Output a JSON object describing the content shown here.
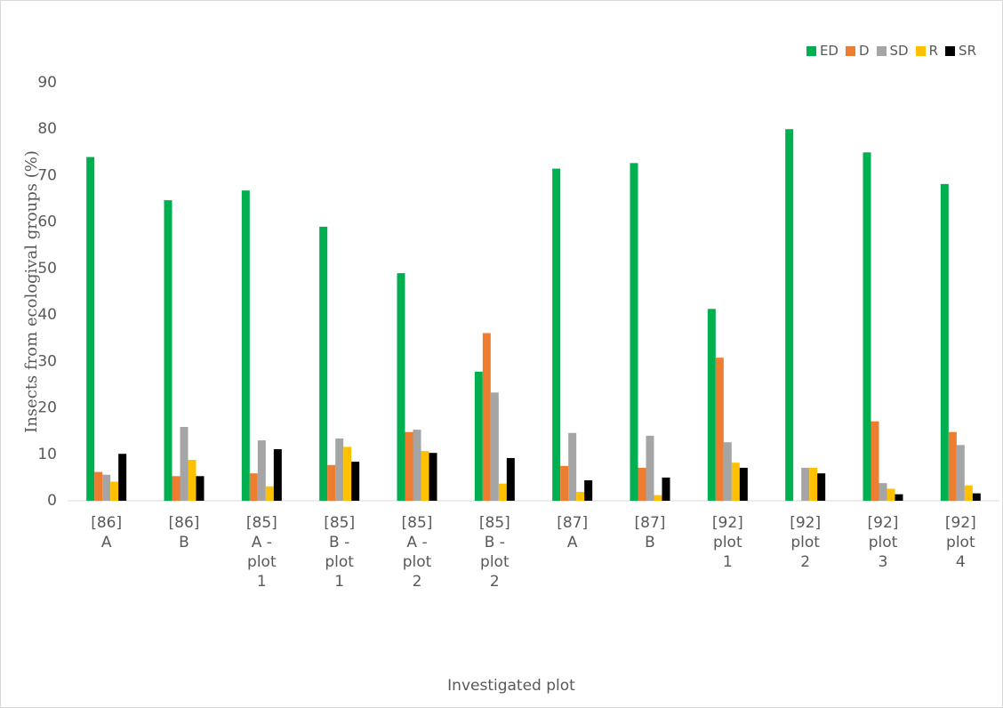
{
  "chart_data": {
    "type": "bar",
    "y_label": "Insects from ecologival groups (%)",
    "x_label": "Investigated plot",
    "categories": [
      "[86] A",
      "[86] B",
      "[85] A - plot 1",
      "[85] B - plot 1",
      "[85] A - plot 2",
      "[85] B - plot 2",
      "[87] A",
      "[87] B",
      "[92] plot 1",
      "[92] plot 2",
      "[92] plot 3",
      "[92] plot 4"
    ],
    "series": [
      {
        "name": "ED",
        "color": "#00b050",
        "values": [
          74,
          64.7,
          66.8,
          59,
          49,
          27.8,
          71.5,
          72.7,
          41.3,
          80,
          75,
          68.2
        ]
      },
      {
        "name": "D",
        "color": "#ed7d31",
        "values": [
          6.2,
          5.3,
          5.9,
          7.7,
          14.8,
          36.1,
          7.5,
          7.1,
          30.8,
          0,
          17.1,
          14.8
        ]
      },
      {
        "name": "SD",
        "color": "#a5a5a5",
        "values": [
          5.6,
          15.9,
          13,
          13.4,
          15.3,
          23.3,
          14.6,
          14,
          12.6,
          7.1,
          3.8,
          12
        ]
      },
      {
        "name": "R",
        "color": "#ffc000",
        "values": [
          4.1,
          8.8,
          3.1,
          11.6,
          10.7,
          3.7,
          1.9,
          1.2,
          8.2,
          7.1,
          2.6,
          3.3
        ]
      },
      {
        "name": "SR",
        "color": "#000000",
        "values": [
          10.1,
          5.3,
          11.1,
          8.4,
          10.3,
          9.2,
          4.4,
          5,
          7.1,
          5.9,
          1.4,
          1.6
        ]
      }
    ],
    "ylim": [
      0,
      90
    ],
    "yticks": [
      0,
      10,
      20,
      30,
      40,
      50,
      60,
      70,
      80,
      90
    ],
    "grid": false,
    "legend": "top-right"
  }
}
